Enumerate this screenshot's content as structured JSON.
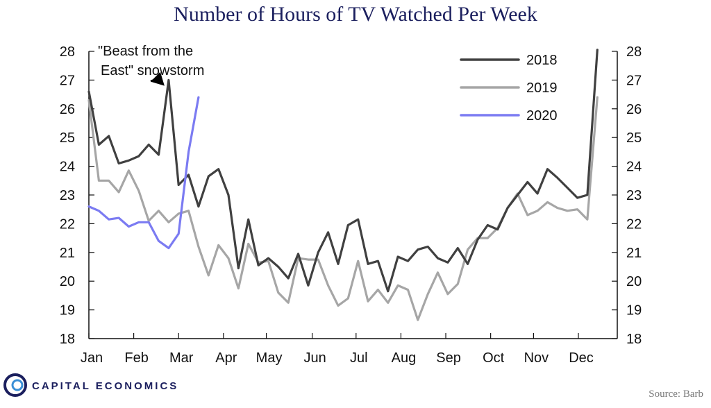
{
  "chart_data": {
    "type": "line",
    "title": "Number of Hours of TV Watched Per Week",
    "xlabel": "",
    "ylabel": "",
    "ylim": [
      18,
      28
    ],
    "yticks": [
      18,
      19,
      20,
      21,
      22,
      23,
      24,
      25,
      26,
      27,
      28
    ],
    "x_range": [
      0,
      53
    ],
    "x_ticks": [
      {
        "label": "Jan",
        "week": 0
      },
      {
        "label": "Feb",
        "week": 4.5
      },
      {
        "label": "Mar",
        "week": 9
      },
      {
        "label": "Apr",
        "week": 13.5
      },
      {
        "label": "May",
        "week": 17.8
      },
      {
        "label": "Jun",
        "week": 22.4
      },
      {
        "label": "Jul",
        "week": 26.8
      },
      {
        "label": "Aug",
        "week": 31.3
      },
      {
        "label": "Sep",
        "week": 35.8
      },
      {
        "label": "Oct",
        "week": 40.3
      },
      {
        "label": "Nov",
        "week": 44.6
      },
      {
        "label": "Dec",
        "week": 49.1
      }
    ],
    "series": [
      {
        "name": "2019",
        "color": "#a6a6a6",
        "values": [
          26.3,
          23.5,
          23.5,
          23.1,
          23.85,
          23.15,
          22.1,
          22.45,
          22.05,
          22.35,
          22.45,
          21.2,
          20.2,
          21.25,
          20.8,
          19.75,
          21.3,
          20.65,
          20.7,
          19.6,
          19.25,
          20.8,
          20.75,
          20.75,
          19.85,
          19.15,
          19.4,
          20.7,
          19.3,
          19.7,
          19.25,
          19.85,
          19.7,
          18.65,
          19.55,
          20.3,
          19.55,
          19.9,
          21.1,
          21.5,
          21.5,
          21.85,
          22.55,
          23.05,
          22.3,
          22.45,
          22.75,
          22.55,
          22.45,
          22.5,
          22.15,
          26.4
        ]
      },
      {
        "name": "2018",
        "color": "#404040",
        "values": [
          26.6,
          24.75,
          25.05,
          24.1,
          24.2,
          24.35,
          24.75,
          24.4,
          27.0,
          23.35,
          23.7,
          22.6,
          23.65,
          23.9,
          23.0,
          20.45,
          22.15,
          20.55,
          20.8,
          20.5,
          20.1,
          20.95,
          19.85,
          21.0,
          21.7,
          20.6,
          21.95,
          22.15,
          20.6,
          20.7,
          19.65,
          20.85,
          20.7,
          21.1,
          21.2,
          20.8,
          20.65,
          21.15,
          20.6,
          21.45,
          21.95,
          21.8,
          22.55,
          23.0,
          23.45,
          23.05,
          23.9,
          23.6,
          23.25,
          22.9,
          23.0,
          28.05
        ]
      },
      {
        "name": "2020",
        "color": "#7b7bf2",
        "values": [
          22.6,
          22.45,
          22.15,
          22.2,
          21.9,
          22.05,
          22.05,
          21.4,
          21.15,
          21.65,
          24.5,
          26.4
        ]
      }
    ],
    "legend": {
      "position": "top-right",
      "order": [
        "2018",
        "2019",
        "2020"
      ]
    },
    "annotations": [
      {
        "lines": [
          "\"Beast from the",
          "East\" snowstorm"
        ],
        "target_week": 8,
        "target_value": 26.85
      }
    ],
    "grid": false
  },
  "branding": {
    "name": "CAPITAL ECONOMICS"
  },
  "source": "Source: Barb"
}
